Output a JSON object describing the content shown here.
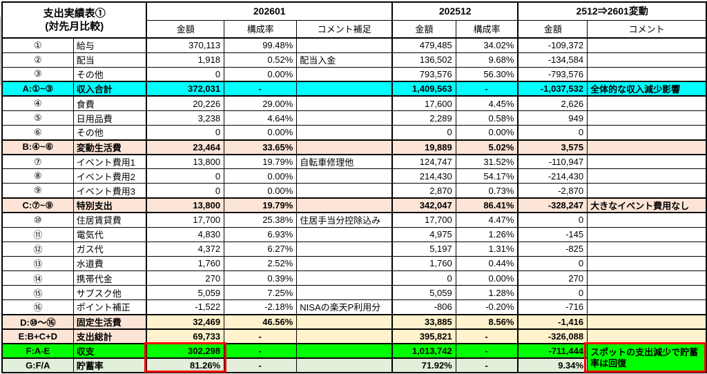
{
  "header": {
    "title_line1": "支出実績表①",
    "title_line2": "(対先月比較)",
    "group_current": "202601",
    "group_previous": "202512",
    "group_diff": "2512⇒2601変動",
    "sub": {
      "amount": "金額",
      "ratio": "構成率",
      "comment_supp": "コメント補足",
      "comment": "コメント"
    }
  },
  "colors": {
    "income_total_row": "#00FFFF",
    "subtotal_label_row": "#FCE4D6",
    "subtotal_value_cells": "#FFF2CC",
    "balance_row": "#00FF00",
    "savings_rate_row": "#E2EFDA",
    "highlight_box": "#FF0000",
    "grid": "#000000"
  },
  "rows": [
    {
      "id": "①",
      "label": "給与",
      "m1_amount": "370,113",
      "m1_pct": "99.48%",
      "m1_comment": "",
      "m0_amount": "479,485",
      "m0_pct": "34.02%",
      "diff_amount": "-109,372",
      "diff_comment": "",
      "style": "normal"
    },
    {
      "id": "②",
      "label": "配当",
      "m1_amount": "1,918",
      "m1_pct": "0.52%",
      "m1_comment": "配当入金",
      "m0_amount": "136,502",
      "m0_pct": "9.68%",
      "diff_amount": "-134,584",
      "diff_comment": "",
      "style": "normal"
    },
    {
      "id": "③",
      "label": "その他",
      "m1_amount": "0",
      "m1_pct": "0.00%",
      "m1_comment": "",
      "m0_amount": "793,576",
      "m0_pct": "56.30%",
      "diff_amount": "-793,576",
      "diff_comment": "",
      "style": "normal"
    },
    {
      "id": "A:①~③",
      "label": "収入合計",
      "m1_amount": "372,031",
      "m1_pct": "-",
      "m1_comment": "",
      "m0_amount": "1,409,563",
      "m0_pct": "-",
      "diff_amount": "-1,037,532",
      "diff_comment": "全体的な収入減少影響",
      "style": "cyan"
    },
    {
      "id": "④",
      "label": "食費",
      "m1_amount": "20,226",
      "m1_pct": "29.00%",
      "m1_comment": "",
      "m0_amount": "17,600",
      "m0_pct": "4.45%",
      "diff_amount": "2,626",
      "diff_comment": "",
      "style": "normal"
    },
    {
      "id": "⑤",
      "label": "日用品費",
      "m1_amount": "3,238",
      "m1_pct": "4.64%",
      "m1_comment": "",
      "m0_amount": "2,289",
      "m0_pct": "0.58%",
      "diff_amount": "949",
      "diff_comment": "",
      "style": "normal"
    },
    {
      "id": "⑥",
      "label": "その他",
      "m1_amount": "0",
      "m1_pct": "0.00%",
      "m1_comment": "",
      "m0_amount": "0",
      "m0_pct": "0.00%",
      "diff_amount": "0",
      "diff_comment": "",
      "style": "normal"
    },
    {
      "id": "B:④~⑥",
      "label": "変動生活費",
      "m1_amount": "23,464",
      "m1_pct": "33.65%",
      "m1_comment": "",
      "m0_amount": "19,889",
      "m0_pct": "5.02%",
      "diff_amount": "3,575",
      "diff_comment": "",
      "style": "peach"
    },
    {
      "id": "⑦",
      "label": "イベント費用1",
      "m1_amount": "13,800",
      "m1_pct": "19.79%",
      "m1_comment": "自転車修理他",
      "m0_amount": "124,747",
      "m0_pct": "31.52%",
      "diff_amount": "-110,947",
      "diff_comment": "",
      "style": "normal"
    },
    {
      "id": "⑧",
      "label": "イベント費用2",
      "m1_amount": "0",
      "m1_pct": "0.00%",
      "m1_comment": "",
      "m0_amount": "214,430",
      "m0_pct": "54.17%",
      "diff_amount": "-214,430",
      "diff_comment": "",
      "style": "normal"
    },
    {
      "id": "⑨",
      "label": "イベント費用3",
      "m1_amount": "0",
      "m1_pct": "0.00%",
      "m1_comment": "",
      "m0_amount": "2,870",
      "m0_pct": "0.73%",
      "diff_amount": "-2,870",
      "diff_comment": "",
      "style": "normal"
    },
    {
      "id": "C:⑦~⑨",
      "label": "特別支出",
      "m1_amount": "13,800",
      "m1_pct": "19.79%",
      "m1_comment": "",
      "m0_amount": "342,047",
      "m0_pct": "86.41%",
      "diff_amount": "-328,247",
      "diff_comment": "大きなイベント費用なし",
      "style": "peach"
    },
    {
      "id": "⑩",
      "label": "住居賃貸費",
      "m1_amount": "17,700",
      "m1_pct": "25.38%",
      "m1_comment": "住居手当分控除込み",
      "m0_amount": "17,700",
      "m0_pct": "4.47%",
      "diff_amount": "0",
      "diff_comment": "",
      "style": "normal"
    },
    {
      "id": "⑪",
      "label": "電気代",
      "m1_amount": "4,830",
      "m1_pct": "6.93%",
      "m1_comment": "",
      "m0_amount": "4,975",
      "m0_pct": "1.26%",
      "diff_amount": "-145",
      "diff_comment": "",
      "style": "normal"
    },
    {
      "id": "⑫",
      "label": "ガス代",
      "m1_amount": "4,372",
      "m1_pct": "6.27%",
      "m1_comment": "",
      "m0_amount": "5,197",
      "m0_pct": "1.31%",
      "diff_amount": "-825",
      "diff_comment": "",
      "style": "normal"
    },
    {
      "id": "⑬",
      "label": "水道費",
      "m1_amount": "1,760",
      "m1_pct": "2.52%",
      "m1_comment": "",
      "m0_amount": "1,760",
      "m0_pct": "0.44%",
      "diff_amount": "0",
      "diff_comment": "",
      "style": "normal"
    },
    {
      "id": "⑭",
      "label": "携帯代金",
      "m1_amount": "270",
      "m1_pct": "0.39%",
      "m1_comment": "",
      "m0_amount": "0",
      "m0_pct": "0.00%",
      "diff_amount": "270",
      "diff_comment": "",
      "style": "normal"
    },
    {
      "id": "⑮",
      "label": "サブスク他",
      "m1_amount": "5,059",
      "m1_pct": "7.25%",
      "m1_comment": "",
      "m0_amount": "5,059",
      "m0_pct": "1.28%",
      "diff_amount": "0",
      "diff_comment": "",
      "style": "normal"
    },
    {
      "id": "⑯",
      "label": "ポイント補正",
      "m1_amount": "-1,522",
      "m1_pct": "-2.18%",
      "m1_comment": "NISAの楽天P利用分",
      "m0_amount": "-806",
      "m0_pct": "-0.20%",
      "diff_amount": "-716",
      "diff_comment": "",
      "style": "normal"
    },
    {
      "id": "D:⑩〜⑯",
      "label": "固定生活費",
      "m1_amount": "32,469",
      "m1_pct": "46.56%",
      "m1_comment": "",
      "m0_amount": "33,885",
      "m0_pct": "8.56%",
      "diff_amount": "-1,416",
      "diff_comment": "",
      "style": "mixed"
    },
    {
      "id": "E:B+C+D",
      "label": "支出総計",
      "m1_amount": "69,733",
      "m1_pct": "-",
      "m1_comment": "",
      "m0_amount": "395,821",
      "m0_pct": "-",
      "diff_amount": "-326,088",
      "diff_comment": "",
      "style": "mixed"
    },
    {
      "id": "F:A-E",
      "label": "収支",
      "m1_amount": "302,298",
      "m1_pct": "-",
      "m1_comment": "",
      "m0_amount": "1,013,742",
      "m0_pct": "-",
      "diff_amount": "-711,444",
      "diff_comment": "スポットの支出減少で貯蓄率は回復",
      "style": "green",
      "merge_comment": "span"
    },
    {
      "id": "G:F/A",
      "label": "貯蓄率",
      "m1_amount": "81.26%",
      "m1_pct": "-",
      "m1_comment": "",
      "m0_amount": "71.92%",
      "m0_pct": "-",
      "diff_amount": "9.34%",
      "diff_comment": "",
      "style": "lightgreen",
      "merge_comment": "skip"
    }
  ]
}
